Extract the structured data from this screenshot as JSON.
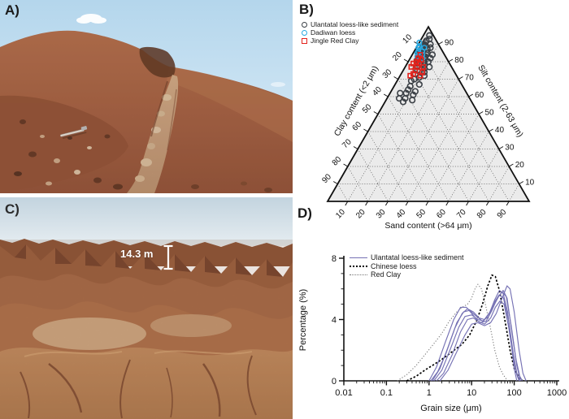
{
  "figure": {
    "panel_labels": {
      "a": "A)",
      "b": "B)",
      "c": "C)",
      "d": "D)"
    },
    "photo_c": {
      "scale_annotation": "14.3 m"
    }
  },
  "colors": {
    "ulantatal_marker": "#3b4046",
    "dadiwan_marker": "#29a9e1",
    "jingle_marker": "#e3211b",
    "ulantatal_line": "#7672b4",
    "chinese_loess_line": "#000000",
    "red_clay_line": "#777777",
    "triangle_fill": "#ebebeb",
    "axis_color": "#111111"
  },
  "chart_data": [
    {
      "type": "scatter",
      "subtype": "ternary",
      "axes": {
        "left_label": "Clay content (<2 μm)",
        "right_label": "Silt content (2-63 μm)",
        "bottom_label": "Sand content (>64 μm)"
      },
      "ticks": [
        10,
        20,
        30,
        40,
        50,
        60,
        70,
        80,
        90
      ],
      "grid": true,
      "legend_position": "top-left",
      "series": [
        {
          "name": "Ulantatal loess-like sediment",
          "marker": "circle",
          "points": [
            {
              "clay": 2,
              "silt": 95,
              "sand": 3
            },
            {
              "clay": 3,
              "silt": 93,
              "sand": 4
            },
            {
              "clay": 5,
              "silt": 92,
              "sand": 3
            },
            {
              "clay": 4,
              "silt": 90,
              "sand": 6
            },
            {
              "clay": 6,
              "silt": 91,
              "sand": 3
            },
            {
              "clay": 7,
              "silt": 90,
              "sand": 3
            },
            {
              "clay": 5,
              "silt": 88,
              "sand": 7
            },
            {
              "clay": 8,
              "silt": 89,
              "sand": 3
            },
            {
              "clay": 9,
              "silt": 88,
              "sand": 3
            },
            {
              "clay": 7,
              "silt": 87,
              "sand": 6
            },
            {
              "clay": 10,
              "silt": 87,
              "sand": 3
            },
            {
              "clay": 8,
              "silt": 85,
              "sand": 7
            },
            {
              "clay": 11,
              "silt": 86,
              "sand": 3
            },
            {
              "clay": 9,
              "silt": 84,
              "sand": 7
            },
            {
              "clay": 12,
              "silt": 85,
              "sand": 3
            },
            {
              "clay": 10,
              "silt": 83,
              "sand": 7
            },
            {
              "clay": 13,
              "silt": 84,
              "sand": 3
            },
            {
              "clay": 11,
              "silt": 82,
              "sand": 7
            },
            {
              "clay": 6,
              "silt": 84,
              "sand": 10
            },
            {
              "clay": 8,
              "silt": 82,
              "sand": 10
            },
            {
              "clay": 14,
              "silt": 82,
              "sand": 4
            },
            {
              "clay": 12,
              "silt": 80,
              "sand": 8
            },
            {
              "clay": 15,
              "silt": 81,
              "sand": 4
            },
            {
              "clay": 10,
              "silt": 80,
              "sand": 10
            },
            {
              "clay": 13,
              "silt": 78,
              "sand": 9
            },
            {
              "clay": 16,
              "silt": 79,
              "sand": 5
            },
            {
              "clay": 11,
              "silt": 77,
              "sand": 12
            },
            {
              "clay": 14,
              "silt": 76,
              "sand": 10
            },
            {
              "clay": 17,
              "silt": 77,
              "sand": 6
            },
            {
              "clay": 15,
              "silt": 74,
              "sand": 11
            },
            {
              "clay": 18,
              "silt": 75,
              "sand": 7
            },
            {
              "clay": 20,
              "silt": 73,
              "sand": 7
            },
            {
              "clay": 16,
              "silt": 72,
              "sand": 12
            },
            {
              "clay": 19,
              "silt": 71,
              "sand": 10
            },
            {
              "clay": 22,
              "silt": 70,
              "sand": 8
            },
            {
              "clay": 24,
              "silt": 69,
              "sand": 7
            },
            {
              "clay": 21,
              "silt": 67,
              "sand": 12
            },
            {
              "clay": 26,
              "silt": 66,
              "sand": 8
            },
            {
              "clay": 28,
              "silt": 64,
              "sand": 8
            },
            {
              "clay": 25,
              "silt": 63,
              "sand": 12
            },
            {
              "clay": 30,
              "silt": 62,
              "sand": 8
            },
            {
              "clay": 27,
              "silt": 61,
              "sand": 12
            },
            {
              "clay": 32,
              "silt": 59,
              "sand": 9
            },
            {
              "clay": 29,
              "silt": 58,
              "sand": 13
            },
            {
              "clay": 34,
              "silt": 57,
              "sand": 9
            },
            {
              "clay": 33,
              "silt": 62,
              "sand": 5
            },
            {
              "clay": 35,
              "silt": 59,
              "sand": 6
            }
          ]
        },
        {
          "name": "Dadiwan loess",
          "marker": "circle",
          "points": [
            {
              "clay": 9,
              "silt": 91,
              "sand": 0
            },
            {
              "clay": 10,
              "silt": 89,
              "sand": 1
            },
            {
              "clay": 8,
              "silt": 88,
              "sand": 4
            },
            {
              "clay": 11,
              "silt": 88,
              "sand": 1
            },
            {
              "clay": 12,
              "silt": 86,
              "sand": 2
            },
            {
              "clay": 10,
              "silt": 86,
              "sand": 4
            },
            {
              "clay": 13,
              "silt": 85,
              "sand": 2
            },
            {
              "clay": 11,
              "silt": 84,
              "sand": 5
            },
            {
              "clay": 14,
              "silt": 83,
              "sand": 3
            },
            {
              "clay": 12,
              "silt": 82,
              "sand": 6
            }
          ]
        },
        {
          "name": "Jingle Red Clay",
          "marker": "square",
          "points": [
            {
              "clay": 12,
              "silt": 84,
              "sand": 4
            },
            {
              "clay": 14,
              "silt": 82,
              "sand": 4
            },
            {
              "clay": 13,
              "silt": 81,
              "sand": 6
            },
            {
              "clay": 16,
              "silt": 80,
              "sand": 4
            },
            {
              "clay": 15,
              "silt": 79,
              "sand": 6
            },
            {
              "clay": 18,
              "silt": 79,
              "sand": 3
            },
            {
              "clay": 17,
              "silt": 77,
              "sand": 6
            },
            {
              "clay": 14,
              "silt": 77,
              "sand": 9
            },
            {
              "clay": 20,
              "silt": 77,
              "sand": 3
            },
            {
              "clay": 19,
              "silt": 75,
              "sand": 6
            },
            {
              "clay": 16,
              "silt": 74,
              "sand": 10
            },
            {
              "clay": 21,
              "silt": 73,
              "sand": 6
            },
            {
              "clay": 18,
              "silt": 72,
              "sand": 10
            },
            {
              "clay": 23,
              "silt": 72,
              "sand": 5
            }
          ]
        }
      ]
    },
    {
      "type": "line",
      "xlabel": "Grain size (μm)",
      "ylabel": "Percentage (%)",
      "xscale": "log",
      "xlim": [
        0.01,
        1000
      ],
      "ylim": [
        0,
        8
      ],
      "xticks": [
        "0.01",
        "0.1",
        "1",
        "10",
        "100",
        "1000"
      ],
      "yticks": [
        0,
        4,
        8
      ],
      "legend_position": "top-left",
      "series": [
        {
          "name": "Ulantatal loess-like sediment",
          "style": "solid",
          "curves": [
            [
              [
                1.1,
                0
              ],
              [
                1.6,
                0.6
              ],
              [
                2.5,
                1.8
              ],
              [
                4,
                3.4
              ],
              [
                6,
                4.4
              ],
              [
                8,
                4.7
              ],
              [
                11,
                4.5
              ],
              [
                15,
                4.1
              ],
              [
                20,
                4.0
              ],
              [
                27,
                4.5
              ],
              [
                35,
                5.3
              ],
              [
                45,
                5.9
              ],
              [
                55,
                5.7
              ],
              [
                70,
                4.5
              ],
              [
                85,
                2.5
              ],
              [
                100,
                0.8
              ],
              [
                115,
                0
              ]
            ],
            [
              [
                1.3,
                0
              ],
              [
                2,
                0.7
              ],
              [
                3,
                1.9
              ],
              [
                5,
                3.5
              ],
              [
                7,
                4.2
              ],
              [
                10,
                4.3
              ],
              [
                14,
                4.0
              ],
              [
                19,
                3.9
              ],
              [
                26,
                4.4
              ],
              [
                34,
                5.1
              ],
              [
                44,
                5.6
              ],
              [
                56,
                5.4
              ],
              [
                75,
                3.8
              ],
              [
                95,
                1.8
              ],
              [
                115,
                0.5
              ],
              [
                135,
                0
              ]
            ],
            [
              [
                1.5,
                0
              ],
              [
                2.2,
                0.5
              ],
              [
                3.5,
                1.7
              ],
              [
                5.5,
                3.2
              ],
              [
                8,
                4.0
              ],
              [
                11,
                4.1
              ],
              [
                16,
                3.8
              ],
              [
                22,
                3.9
              ],
              [
                30,
                4.6
              ],
              [
                40,
                5.4
              ],
              [
                52,
                5.8
              ],
              [
                65,
                5.5
              ],
              [
                85,
                3.6
              ],
              [
                110,
                1.4
              ],
              [
                135,
                0.3
              ],
              [
                155,
                0
              ]
            ],
            [
              [
                1.2,
                0
              ],
              [
                1.8,
                0.8
              ],
              [
                2.8,
                2.2
              ],
              [
                4.5,
                3.8
              ],
              [
                6.5,
                4.5
              ],
              [
                9,
                4.6
              ],
              [
                13,
                4.2
              ],
              [
                18,
                3.9
              ],
              [
                25,
                4.2
              ],
              [
                33,
                4.9
              ],
              [
                43,
                5.5
              ],
              [
                55,
                5.9
              ],
              [
                68,
                5.4
              ],
              [
                90,
                3.0
              ],
              [
                115,
                1.0
              ],
              [
                140,
                0
              ]
            ],
            [
              [
                1.8,
                0
              ],
              [
                2.8,
                0.7
              ],
              [
                4.5,
                1.9
              ],
              [
                7,
                3.0
              ],
              [
                10,
                3.7
              ],
              [
                14,
                3.8
              ],
              [
                20,
                3.6
              ],
              [
                28,
                3.8
              ],
              [
                38,
                4.4
              ],
              [
                52,
                5.4
              ],
              [
                68,
                6.2
              ],
              [
                80,
                6.0
              ],
              [
                100,
                4.5
              ],
              [
                130,
                2.0
              ],
              [
                160,
                0.5
              ],
              [
                190,
                0
              ]
            ],
            [
              [
                1.0,
                0
              ],
              [
                1.5,
                0.9
              ],
              [
                2.4,
                2.5
              ],
              [
                3.8,
                4.0
              ],
              [
                5.5,
                4.8
              ],
              [
                7.5,
                4.8
              ],
              [
                10,
                4.4
              ],
              [
                14,
                3.9
              ],
              [
                20,
                3.7
              ],
              [
                28,
                4.1
              ],
              [
                36,
                4.8
              ],
              [
                46,
                5.2
              ],
              [
                58,
                5.0
              ],
              [
                75,
                3.4
              ],
              [
                95,
                1.5
              ],
              [
                115,
                0.4
              ],
              [
                130,
                0
              ]
            ]
          ]
        },
        {
          "name": "Chinese loess",
          "style": "dashed",
          "curves": [
            [
              [
                0.3,
                0
              ],
              [
                0.5,
                0.3
              ],
              [
                0.8,
                0.7
              ],
              [
                1.2,
                1.0
              ],
              [
                2,
                1.4
              ],
              [
                3.5,
                1.9
              ],
              [
                6,
                2.4
              ],
              [
                9,
                3.0
              ],
              [
                13,
                3.9
              ],
              [
                18,
                5.0
              ],
              [
                24,
                6.2
              ],
              [
                30,
                6.9
              ],
              [
                36,
                6.8
              ],
              [
                45,
                5.9
              ],
              [
                60,
                4.0
              ],
              [
                80,
                2.0
              ],
              [
                100,
                0.8
              ],
              [
                130,
                0.2
              ],
              [
                160,
                0
              ]
            ]
          ]
        },
        {
          "name": "Red Clay",
          "style": "dotted",
          "curves": [
            [
              [
                0.18,
                0
              ],
              [
                0.3,
                0.4
              ],
              [
                0.5,
                1.0
              ],
              [
                0.8,
                1.7
              ],
              [
                1.2,
                2.3
              ],
              [
                2,
                3.1
              ],
              [
                3,
                3.9
              ],
              [
                4.5,
                4.5
              ],
              [
                6,
                4.8
              ],
              [
                8,
                5.0
              ],
              [
                10,
                5.4
              ],
              [
                12,
                6.0
              ],
              [
                14,
                6.3
              ],
              [
                17,
                6.0
              ],
              [
                21,
                5.0
              ],
              [
                27,
                3.6
              ],
              [
                35,
                2.0
              ],
              [
                45,
                0.9
              ],
              [
                55,
                0.4
              ],
              [
                70,
                0
              ]
            ]
          ]
        }
      ]
    }
  ]
}
